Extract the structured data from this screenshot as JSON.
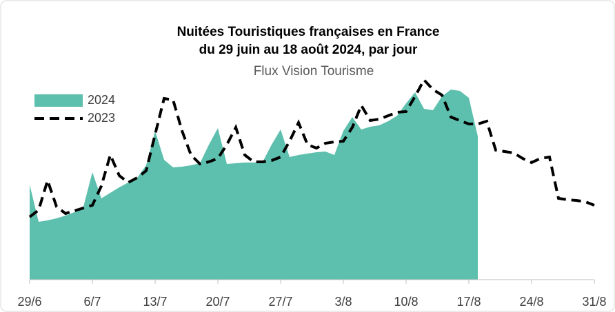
{
  "chart_data": {
    "type": "area-line",
    "title": "Nuitées Touristiques françaises en France",
    "subtitle": "du 29 juin au 18 août 2024, par jour",
    "source": "Flux Vision Tourisme",
    "categories": [
      "29/6",
      null,
      null,
      null,
      null,
      null,
      null,
      "6/7",
      null,
      null,
      null,
      null,
      null,
      null,
      "13/7",
      null,
      null,
      null,
      null,
      null,
      null,
      "20/7",
      null,
      null,
      null,
      null,
      null,
      null,
      "27/7",
      null,
      null,
      null,
      null,
      null,
      null,
      "3/8",
      null,
      null,
      null,
      null,
      null,
      null,
      "10/8",
      null,
      null,
      null,
      null,
      null,
      null,
      "17/8",
      null,
      null,
      null,
      null,
      null,
      null,
      "24/8",
      null,
      null,
      null,
      null,
      null,
      null,
      "31/8"
    ],
    "ylim": [
      0,
      300
    ],
    "legend": "top-left",
    "series": [
      {
        "name": "2024",
        "kind": "area",
        "color": "#5dbfad",
        "values": [
          138,
          84,
          86,
          89,
          93,
          98,
          106,
          156,
          118,
          126,
          134,
          141,
          148,
          166,
          216,
          174,
          163,
          164,
          166,
          169,
          196,
          220,
          168,
          169,
          170,
          170,
          171,
          196,
          218,
          178,
          181,
          183,
          185,
          186,
          181,
          216,
          236,
          218,
          222,
          224,
          230,
          238,
          256,
          272,
          248,
          246,
          266,
          276,
          274,
          264,
          208,
          null,
          null,
          null,
          null,
          null,
          null,
          null,
          null,
          null,
          null,
          null,
          null,
          null
        ]
      },
      {
        "name": "2023",
        "kind": "dashed-line",
        "color": "#000000",
        "values": [
          91,
          101,
          144,
          106,
          96,
          100,
          104,
          108,
          136,
          181,
          151,
          141,
          148,
          158,
          211,
          263,
          261,
          216,
          181,
          168,
          171,
          176,
          196,
          221,
          181,
          171,
          171,
          173,
          178,
          201,
          228,
          196,
          191,
          198,
          200,
          201,
          221,
          253,
          231,
          233,
          238,
          243,
          244,
          266,
          290,
          276,
          268,
          236,
          231,
          226,
          226,
          230,
          188,
          186,
          184,
          176,
          170,
          176,
          178,
          118,
          116,
          115,
          113,
          108
        ]
      }
    ]
  }
}
